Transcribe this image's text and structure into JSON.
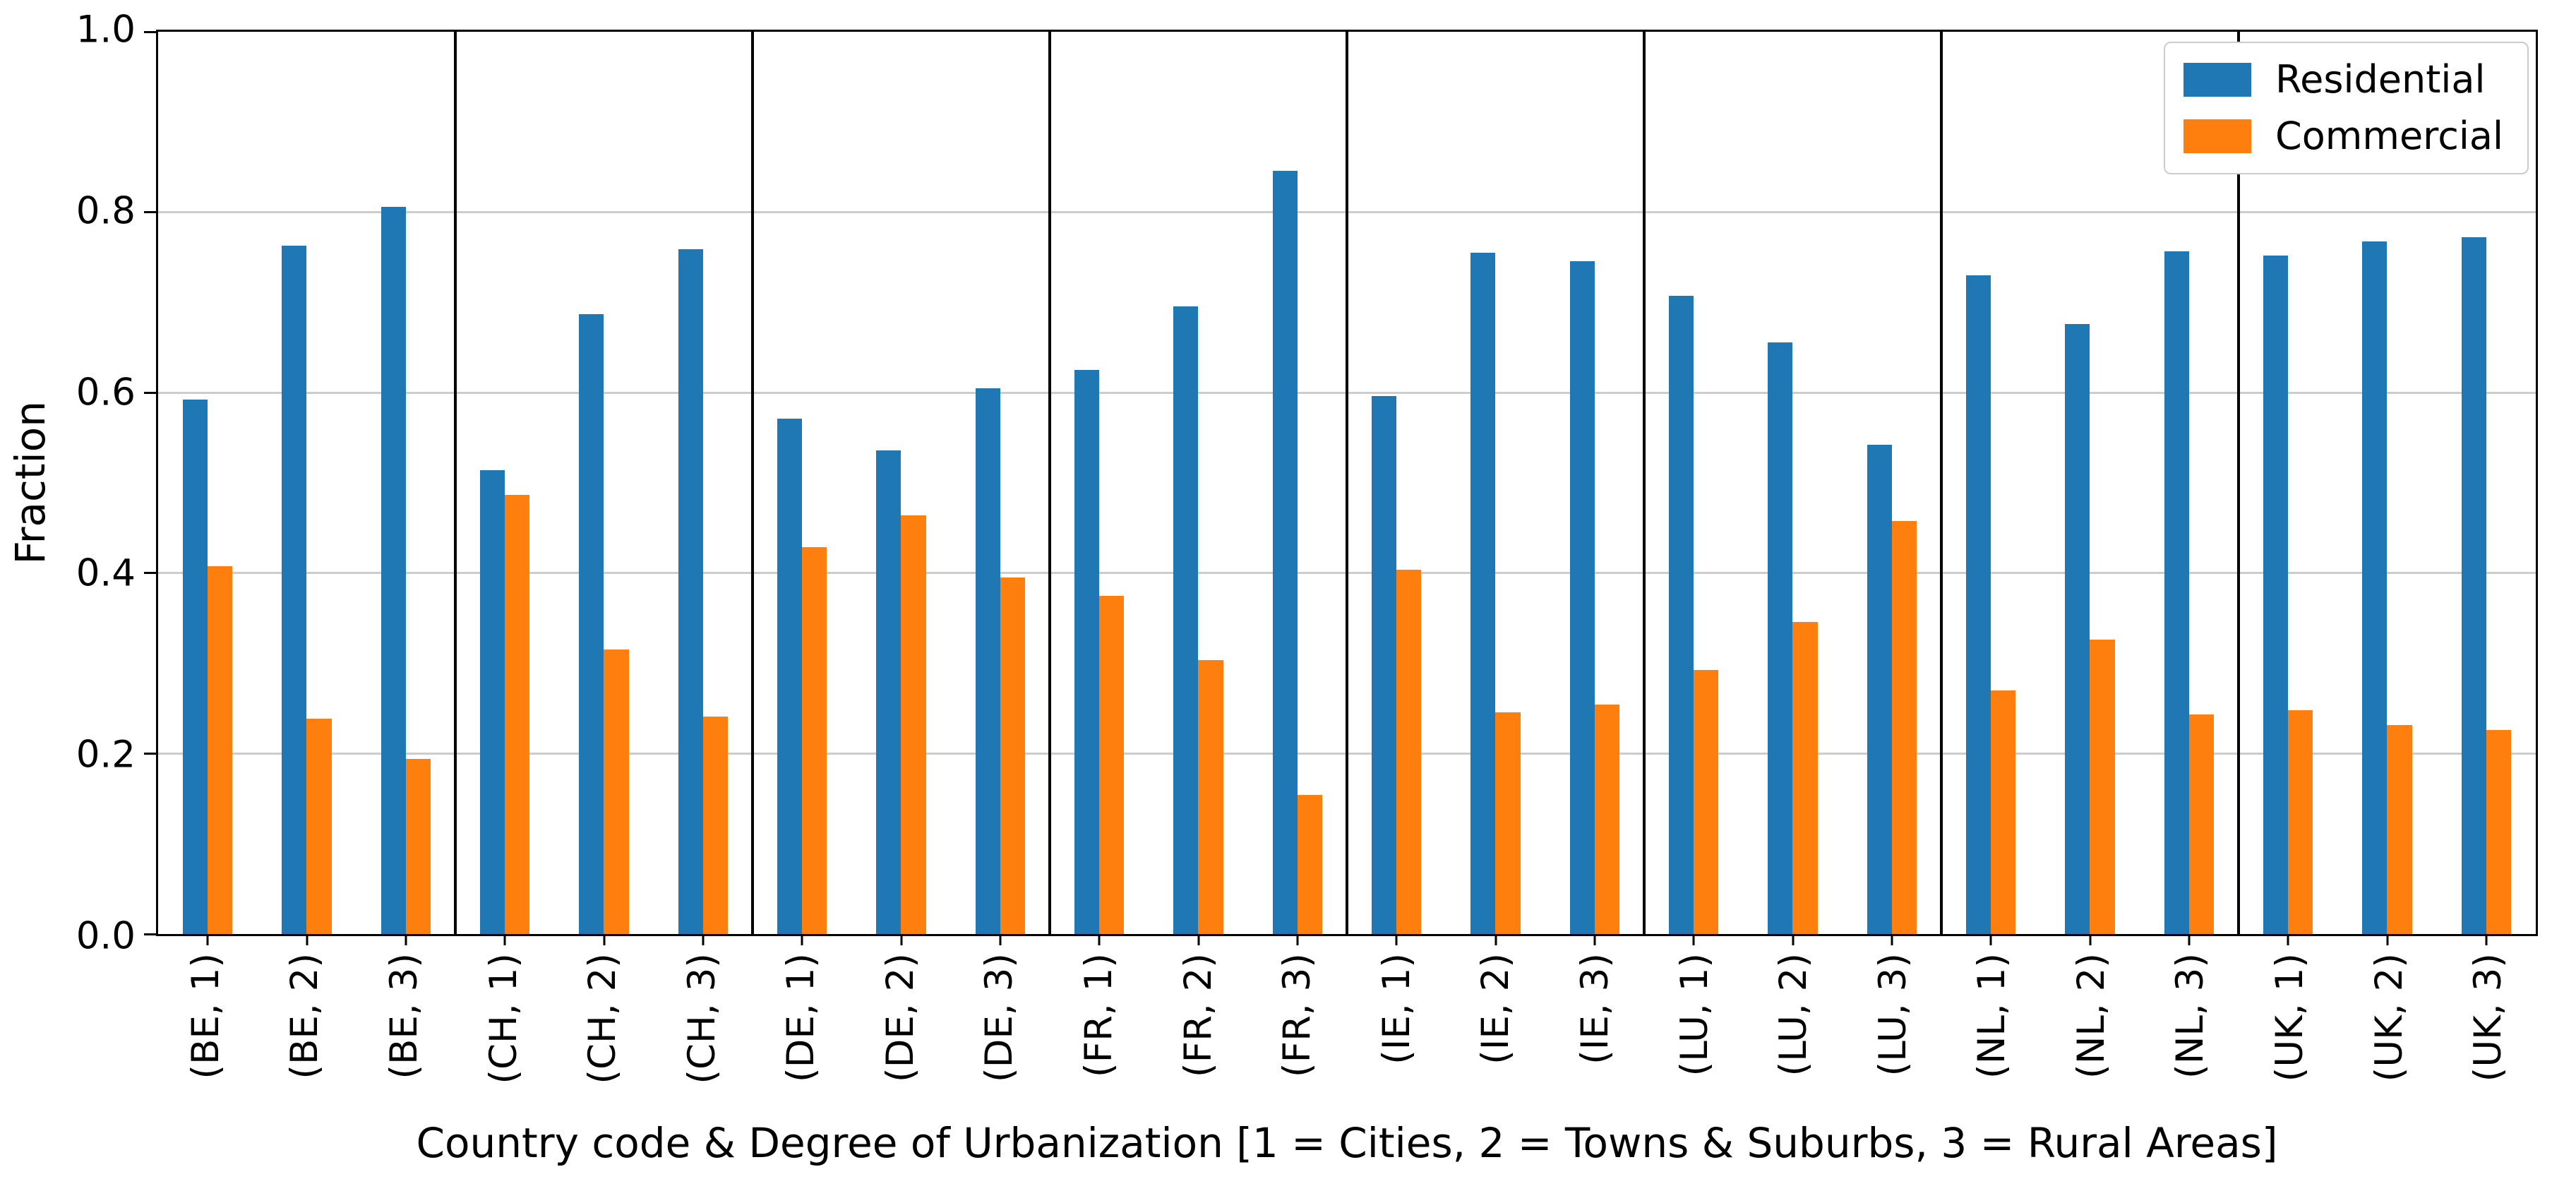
{
  "chart_data": {
    "type": "bar",
    "title": "",
    "xlabel": "Country code & Degree of Urbanization [1 = Cities, 2 = Towns & Suburbs, 3 = Rural Areas]",
    "ylabel": "Fraction",
    "ylim": [
      0.0,
      1.0
    ],
    "yticks": [
      0.0,
      0.2,
      0.4,
      0.6,
      0.8,
      1.0
    ],
    "grid": true,
    "legend_position": "upper right",
    "categories": [
      "(BE, 1)",
      "(BE, 2)",
      "(BE, 3)",
      "(CH, 1)",
      "(CH, 2)",
      "(CH, 3)",
      "(DE, 1)",
      "(DE, 2)",
      "(DE, 3)",
      "(FR, 1)",
      "(FR, 2)",
      "(FR, 3)",
      "(IE, 1)",
      "(IE, 2)",
      "(IE, 3)",
      "(LU, 1)",
      "(LU, 2)",
      "(LU, 3)",
      "(NL, 1)",
      "(NL, 2)",
      "(NL, 3)",
      "(UK, 1)",
      "(UK, 2)",
      "(UK, 3)"
    ],
    "group_separators_after": [
      3,
      6,
      9,
      12,
      15,
      18,
      21
    ],
    "series": [
      {
        "name": "Residential",
        "color": "#1f77b4",
        "values": [
          0.592,
          0.763,
          0.806,
          0.514,
          0.687,
          0.759,
          0.571,
          0.536,
          0.605,
          0.625,
          0.696,
          0.846,
          0.596,
          0.755,
          0.746,
          0.707,
          0.656,
          0.542,
          0.73,
          0.676,
          0.757,
          0.752,
          0.768,
          0.772
        ]
      },
      {
        "name": "Commercial",
        "color": "#ff7f0e",
        "values": [
          0.408,
          0.239,
          0.194,
          0.487,
          0.315,
          0.241,
          0.429,
          0.464,
          0.395,
          0.375,
          0.304,
          0.154,
          0.404,
          0.246,
          0.254,
          0.293,
          0.346,
          0.458,
          0.27,
          0.326,
          0.243,
          0.248,
          0.232,
          0.226
        ]
      }
    ],
    "colors": {
      "grid": "#cccccc",
      "axes": "#000000"
    }
  }
}
